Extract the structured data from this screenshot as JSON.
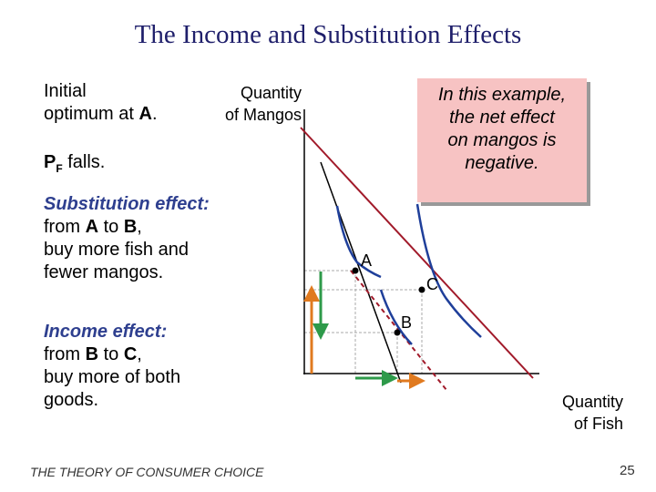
{
  "title": "The Income and Substitution Effects",
  "notes": {
    "initial": [
      "Initial",
      "optimum at ",
      "A",
      "."
    ],
    "price": [
      "P",
      "F",
      " falls."
    ],
    "substitution": {
      "heading": "Substitution effect:",
      "lines": [
        [
          "from ",
          "A",
          " to ",
          "B",
          ","
        ],
        [
          "buy more fish and"
        ],
        [
          "fewer mangos."
        ]
      ]
    },
    "income": {
      "heading": "Income effect:",
      "lines": [
        [
          "from ",
          "B",
          " to ",
          "C",
          ","
        ],
        [
          "buy more of both"
        ],
        [
          "goods."
        ]
      ]
    }
  },
  "diagram": {
    "y_axis_label": [
      "Quantity",
      "of Mangos"
    ],
    "x_axis_label": [
      "Quantity",
      "of Fish"
    ],
    "points": [
      "A",
      "B",
      "C"
    ]
  },
  "callout": [
    "In this example,",
    "the net effect",
    "on mangos is",
    "negative."
  ],
  "footer": "THE THEORY OF CONSUMER CHOICE",
  "page_number": 25
}
